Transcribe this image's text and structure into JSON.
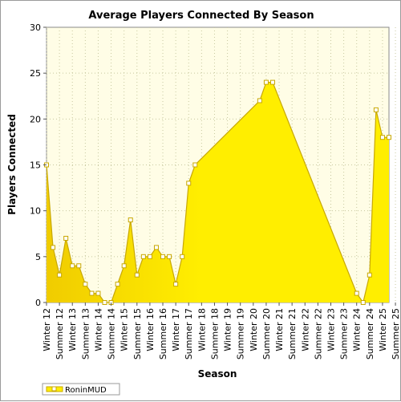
{
  "chart_data": {
    "type": "area",
    "title": "Average Players Connected By Season",
    "xlabel": "Season",
    "ylabel": "Players Connected",
    "ylim": [
      0,
      30
    ],
    "yticks": [
      0,
      5,
      10,
      15,
      20,
      25,
      30
    ],
    "grid": true,
    "legend_position": "bottom-left",
    "colors": {
      "area_fill": "#ffee00",
      "area_fill_dark": "#f0cc00",
      "line": "#c8a800",
      "plot_background": "#fffde6",
      "grid": "#c8c8a0",
      "marker_fill": "#ffffff"
    },
    "categories": [
      "Winter 12",
      "Summer 12",
      "Winter 13",
      "Summer 13",
      "Winter 14",
      "Summer 14",
      "Winter 15",
      "Summer 15",
      "Winter 16",
      "Summer 16",
      "Winter 17",
      "Summer 17",
      "Winter 18",
      "Summer 18",
      "Winter 19",
      "Summer 19",
      "Winter 20",
      "Summer 20",
      "Winter 21",
      "Summer 21",
      "Winter 22",
      "Summer 22",
      "Winter 23",
      "Summer 23",
      "Winter 24",
      "Summer 24",
      "Winter 25",
      "Summer 25"
    ],
    "series": [
      {
        "name": "RoninMUD",
        "points": [
          [
            0.0,
            15
          ],
          [
            0.5,
            6
          ],
          [
            1.0,
            3
          ],
          [
            1.5,
            7
          ],
          [
            2.0,
            4
          ],
          [
            2.5,
            4
          ],
          [
            3.0,
            2
          ],
          [
            3.5,
            1
          ],
          [
            4.0,
            1
          ],
          [
            4.5,
            0
          ],
          [
            5.0,
            0
          ],
          [
            5.5,
            2
          ],
          [
            6.0,
            4
          ],
          [
            6.5,
            9
          ],
          [
            7.0,
            3
          ],
          [
            7.5,
            5
          ],
          [
            8.0,
            5
          ],
          [
            8.5,
            6
          ],
          [
            9.0,
            5
          ],
          [
            9.5,
            5
          ],
          [
            10.0,
            2
          ],
          [
            10.5,
            5
          ],
          [
            11.0,
            13
          ],
          [
            11.5,
            15
          ],
          [
            16.5,
            22
          ],
          [
            17.0,
            24
          ],
          [
            17.5,
            24
          ],
          [
            24.0,
            1
          ],
          [
            24.5,
            0
          ],
          [
            25.0,
            3
          ],
          [
            25.5,
            21
          ],
          [
            26.0,
            18
          ],
          [
            26.5,
            18
          ]
        ]
      }
    ]
  }
}
